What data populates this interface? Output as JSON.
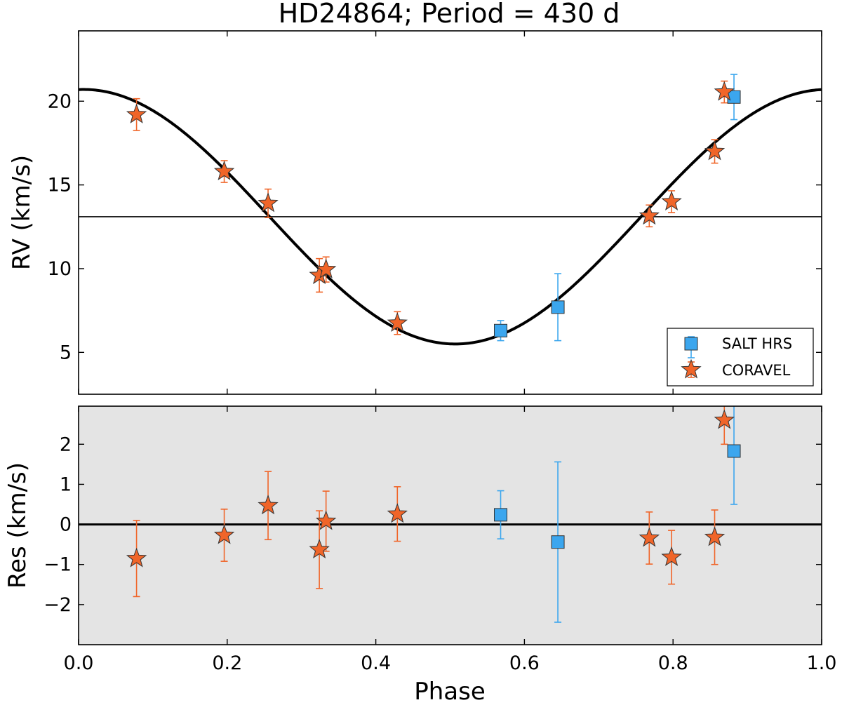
{
  "chart_data": {
    "type": "scatter",
    "title": "HD24864; Period = 430 d",
    "xlabel": "Phase",
    "xlim": [
      0.0,
      1.0
    ],
    "xticks": [
      "0.0",
      "0.2",
      "0.4",
      "0.6",
      "0.8",
      "1.0"
    ],
    "colors": {
      "salt": "#3ba6ee",
      "coravel": "#f06529",
      "marker_edge": "#333333",
      "residual_bg": "#e4e4e4",
      "model": "#000000"
    },
    "top_panel": {
      "ylabel": "RV (km/s)",
      "ylim": [
        2.5,
        24.2
      ],
      "yticks": [
        "5",
        "10",
        "15",
        "20"
      ],
      "model": {
        "type": "sinusoid",
        "gamma": 13.1,
        "semi_amplitude": 7.6,
        "phase_of_minimum": 0.507
      },
      "systemic_velocity_line": 13.1,
      "legend": {
        "placement": "lower-right",
        "entries": [
          "SALT HRS",
          "CORAVEL"
        ]
      },
      "series": [
        {
          "name": "SALT HRS",
          "marker": "square",
          "x": [
            0.568,
            0.645,
            0.882
          ],
          "y": [
            6.3,
            7.7,
            20.25
          ],
          "yerr": [
            0.6,
            2.0,
            1.35
          ]
        },
        {
          "name": "CORAVEL",
          "marker": "star",
          "x": [
            0.078,
            0.196,
            0.255,
            0.324,
            0.333,
            0.429,
            0.768,
            0.798,
            0.856,
            0.869
          ],
          "y": [
            19.2,
            15.8,
            13.9,
            9.6,
            9.95,
            6.75,
            13.15,
            14.0,
            17.0,
            20.55
          ],
          "yerr": [
            0.95,
            0.65,
            0.85,
            1.0,
            0.75,
            0.68,
            0.65,
            0.65,
            0.7,
            0.65
          ]
        }
      ]
    },
    "bottom_panel": {
      "ylabel": "Res (km/s)",
      "ylim": [
        -3.0,
        2.95
      ],
      "yticks": [
        "−2",
        "−1",
        "0",
        "1",
        "2"
      ],
      "zero_line": 0,
      "series": [
        {
          "name": "SALT HRS",
          "marker": "square",
          "x": [
            0.568,
            0.645,
            0.882
          ],
          "y": [
            0.24,
            -0.44,
            1.83
          ],
          "yerr": [
            0.6,
            2.0,
            1.33
          ]
        },
        {
          "name": "CORAVEL",
          "marker": "star",
          "x": [
            0.078,
            0.196,
            0.255,
            0.324,
            0.333,
            0.429,
            0.768,
            0.798,
            0.856,
            0.869
          ],
          "y": [
            -0.85,
            -0.27,
            0.47,
            -0.63,
            0.08,
            0.26,
            -0.34,
            -0.82,
            -0.32,
            2.6
          ],
          "yerr": [
            0.95,
            0.65,
            0.85,
            0.97,
            0.75,
            0.68,
            0.65,
            0.67,
            0.68,
            0.6
          ]
        }
      ]
    }
  }
}
